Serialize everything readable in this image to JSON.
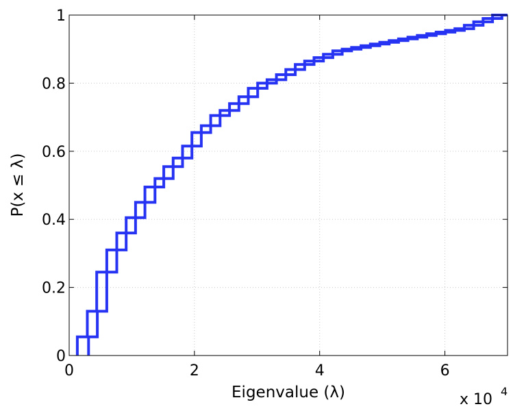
{
  "chart_data": {
    "type": "line",
    "xlabel": "Eigenvalue (λ)",
    "ylabel": "P(x ≤ λ)",
    "x_multiplier_label": "x 10",
    "x_multiplier_exponent": "4",
    "xlim": [
      0,
      70000
    ],
    "ylim": [
      0,
      1
    ],
    "x_ticks": [
      0,
      20000,
      40000,
      60000
    ],
    "x_tick_labels": [
      "0",
      "2",
      "4",
      "6"
    ],
    "y_ticks": [
      0,
      0.2,
      0.4,
      0.6,
      0.8,
      1
    ],
    "y_tick_labels": [
      "0",
      "0.2",
      "0.4",
      "0.6",
      "0.8",
      "1"
    ],
    "grid": true,
    "series_color": "#2633f2",
    "series": [
      {
        "steps": [
          [
            1300,
            0
          ],
          [
            1300,
            0.055
          ],
          [
            2900,
            0.055
          ],
          [
            2900,
            0.13
          ],
          [
            4400,
            0.13
          ],
          [
            4400,
            0.245
          ],
          [
            6000,
            0.245
          ],
          [
            6000,
            0.31
          ],
          [
            7600,
            0.31
          ],
          [
            7600,
            0.36
          ],
          [
            9100,
            0.36
          ],
          [
            9100,
            0.405
          ],
          [
            10600,
            0.405
          ],
          [
            10600,
            0.45
          ],
          [
            12100,
            0.45
          ],
          [
            12100,
            0.495
          ],
          [
            13700,
            0.495
          ],
          [
            13700,
            0.52
          ],
          [
            15100,
            0.52
          ],
          [
            15100,
            0.555
          ],
          [
            16600,
            0.555
          ],
          [
            16600,
            0.58
          ],
          [
            18100,
            0.58
          ],
          [
            18100,
            0.615
          ],
          [
            19600,
            0.615
          ],
          [
            19600,
            0.655
          ],
          [
            21100,
            0.655
          ],
          [
            21100,
            0.675
          ],
          [
            22600,
            0.675
          ],
          [
            22600,
            0.705
          ],
          [
            24100,
            0.705
          ],
          [
            24100,
            0.72
          ],
          [
            25600,
            0.72
          ],
          [
            25600,
            0.74
          ],
          [
            27100,
            0.74
          ],
          [
            27100,
            0.76
          ],
          [
            28600,
            0.76
          ],
          [
            28600,
            0.785
          ],
          [
            30100,
            0.785
          ],
          [
            30100,
            0.8
          ],
          [
            31600,
            0.8
          ],
          [
            31600,
            0.81
          ],
          [
            33100,
            0.81
          ],
          [
            33100,
            0.825
          ],
          [
            34600,
            0.825
          ],
          [
            34600,
            0.84
          ],
          [
            36100,
            0.84
          ],
          [
            36100,
            0.855
          ],
          [
            37600,
            0.855
          ],
          [
            37600,
            0.865
          ],
          [
            39100,
            0.865
          ],
          [
            39100,
            0.875
          ],
          [
            40600,
            0.875
          ],
          [
            40600,
            0.885
          ],
          [
            42100,
            0.885
          ],
          [
            42100,
            0.895
          ],
          [
            43600,
            0.895
          ],
          [
            43600,
            0.9
          ],
          [
            45100,
            0.9
          ],
          [
            45100,
            0.905
          ],
          [
            46600,
            0.905
          ],
          [
            46600,
            0.91
          ],
          [
            48100,
            0.91
          ],
          [
            48100,
            0.915
          ],
          [
            49600,
            0.915
          ],
          [
            49600,
            0.92
          ],
          [
            51100,
            0.92
          ],
          [
            51100,
            0.925
          ],
          [
            52600,
            0.925
          ],
          [
            52600,
            0.93
          ],
          [
            54100,
            0.93
          ],
          [
            54100,
            0.935
          ],
          [
            55600,
            0.935
          ],
          [
            55600,
            0.94
          ],
          [
            57100,
            0.94
          ],
          [
            57100,
            0.945
          ],
          [
            58600,
            0.945
          ],
          [
            58600,
            0.95
          ],
          [
            60100,
            0.95
          ],
          [
            60100,
            0.955
          ],
          [
            61600,
            0.955
          ],
          [
            61600,
            0.96
          ],
          [
            63100,
            0.96
          ],
          [
            63100,
            0.97
          ],
          [
            64600,
            0.97
          ],
          [
            64600,
            0.98
          ],
          [
            66100,
            0.98
          ],
          [
            66100,
            0.99
          ],
          [
            67600,
            0.99
          ],
          [
            67600,
            1.0
          ],
          [
            70000,
            1.0
          ]
        ]
      },
      {
        "steps": [
          [
            3100,
            0
          ],
          [
            3100,
            0.055
          ],
          [
            4500,
            0.055
          ],
          [
            4500,
            0.13
          ],
          [
            6000,
            0.13
          ],
          [
            6000,
            0.245
          ],
          [
            7600,
            0.245
          ],
          [
            7600,
            0.31
          ],
          [
            9100,
            0.31
          ],
          [
            9100,
            0.36
          ],
          [
            10600,
            0.36
          ],
          [
            10600,
            0.405
          ],
          [
            12100,
            0.405
          ],
          [
            12100,
            0.45
          ],
          [
            13700,
            0.45
          ],
          [
            13700,
            0.495
          ],
          [
            15100,
            0.495
          ],
          [
            15100,
            0.52
          ],
          [
            16600,
            0.52
          ],
          [
            16600,
            0.555
          ],
          [
            18100,
            0.555
          ],
          [
            18100,
            0.58
          ],
          [
            19600,
            0.58
          ],
          [
            19600,
            0.615
          ],
          [
            21100,
            0.615
          ],
          [
            21100,
            0.655
          ],
          [
            22600,
            0.655
          ],
          [
            22600,
            0.675
          ],
          [
            24100,
            0.675
          ],
          [
            24100,
            0.705
          ],
          [
            25600,
            0.705
          ],
          [
            25600,
            0.72
          ],
          [
            27100,
            0.72
          ],
          [
            27100,
            0.74
          ],
          [
            28600,
            0.74
          ],
          [
            28600,
            0.76
          ],
          [
            30100,
            0.76
          ],
          [
            30100,
            0.785
          ],
          [
            31600,
            0.785
          ],
          [
            31600,
            0.8
          ],
          [
            33100,
            0.8
          ],
          [
            33100,
            0.81
          ],
          [
            34600,
            0.81
          ],
          [
            34600,
            0.825
          ],
          [
            36100,
            0.825
          ],
          [
            36100,
            0.84
          ],
          [
            37600,
            0.84
          ],
          [
            37600,
            0.855
          ],
          [
            39100,
            0.855
          ],
          [
            39100,
            0.865
          ],
          [
            40600,
            0.865
          ],
          [
            40600,
            0.875
          ],
          [
            42100,
            0.875
          ],
          [
            42100,
            0.885
          ],
          [
            43600,
            0.885
          ],
          [
            43600,
            0.895
          ],
          [
            45100,
            0.895
          ],
          [
            45100,
            0.9
          ],
          [
            46600,
            0.9
          ],
          [
            46600,
            0.905
          ],
          [
            48100,
            0.905
          ],
          [
            48100,
            0.91
          ],
          [
            49600,
            0.91
          ],
          [
            49600,
            0.915
          ],
          [
            51100,
            0.915
          ],
          [
            51100,
            0.92
          ],
          [
            52600,
            0.92
          ],
          [
            52600,
            0.925
          ],
          [
            54100,
            0.925
          ],
          [
            54100,
            0.93
          ],
          [
            55600,
            0.93
          ],
          [
            55600,
            0.935
          ],
          [
            57100,
            0.935
          ],
          [
            57100,
            0.94
          ],
          [
            58600,
            0.94
          ],
          [
            58600,
            0.945
          ],
          [
            60100,
            0.945
          ],
          [
            60100,
            0.95
          ],
          [
            61600,
            0.95
          ],
          [
            61600,
            0.955
          ],
          [
            63100,
            0.955
          ],
          [
            63100,
            0.96
          ],
          [
            64600,
            0.96
          ],
          [
            64600,
            0.97
          ],
          [
            66100,
            0.97
          ],
          [
            66100,
            0.98
          ],
          [
            67600,
            0.98
          ],
          [
            67600,
            0.99
          ],
          [
            69100,
            0.99
          ],
          [
            69100,
            1.0
          ],
          [
            70000,
            1.0
          ]
        ]
      }
    ]
  }
}
